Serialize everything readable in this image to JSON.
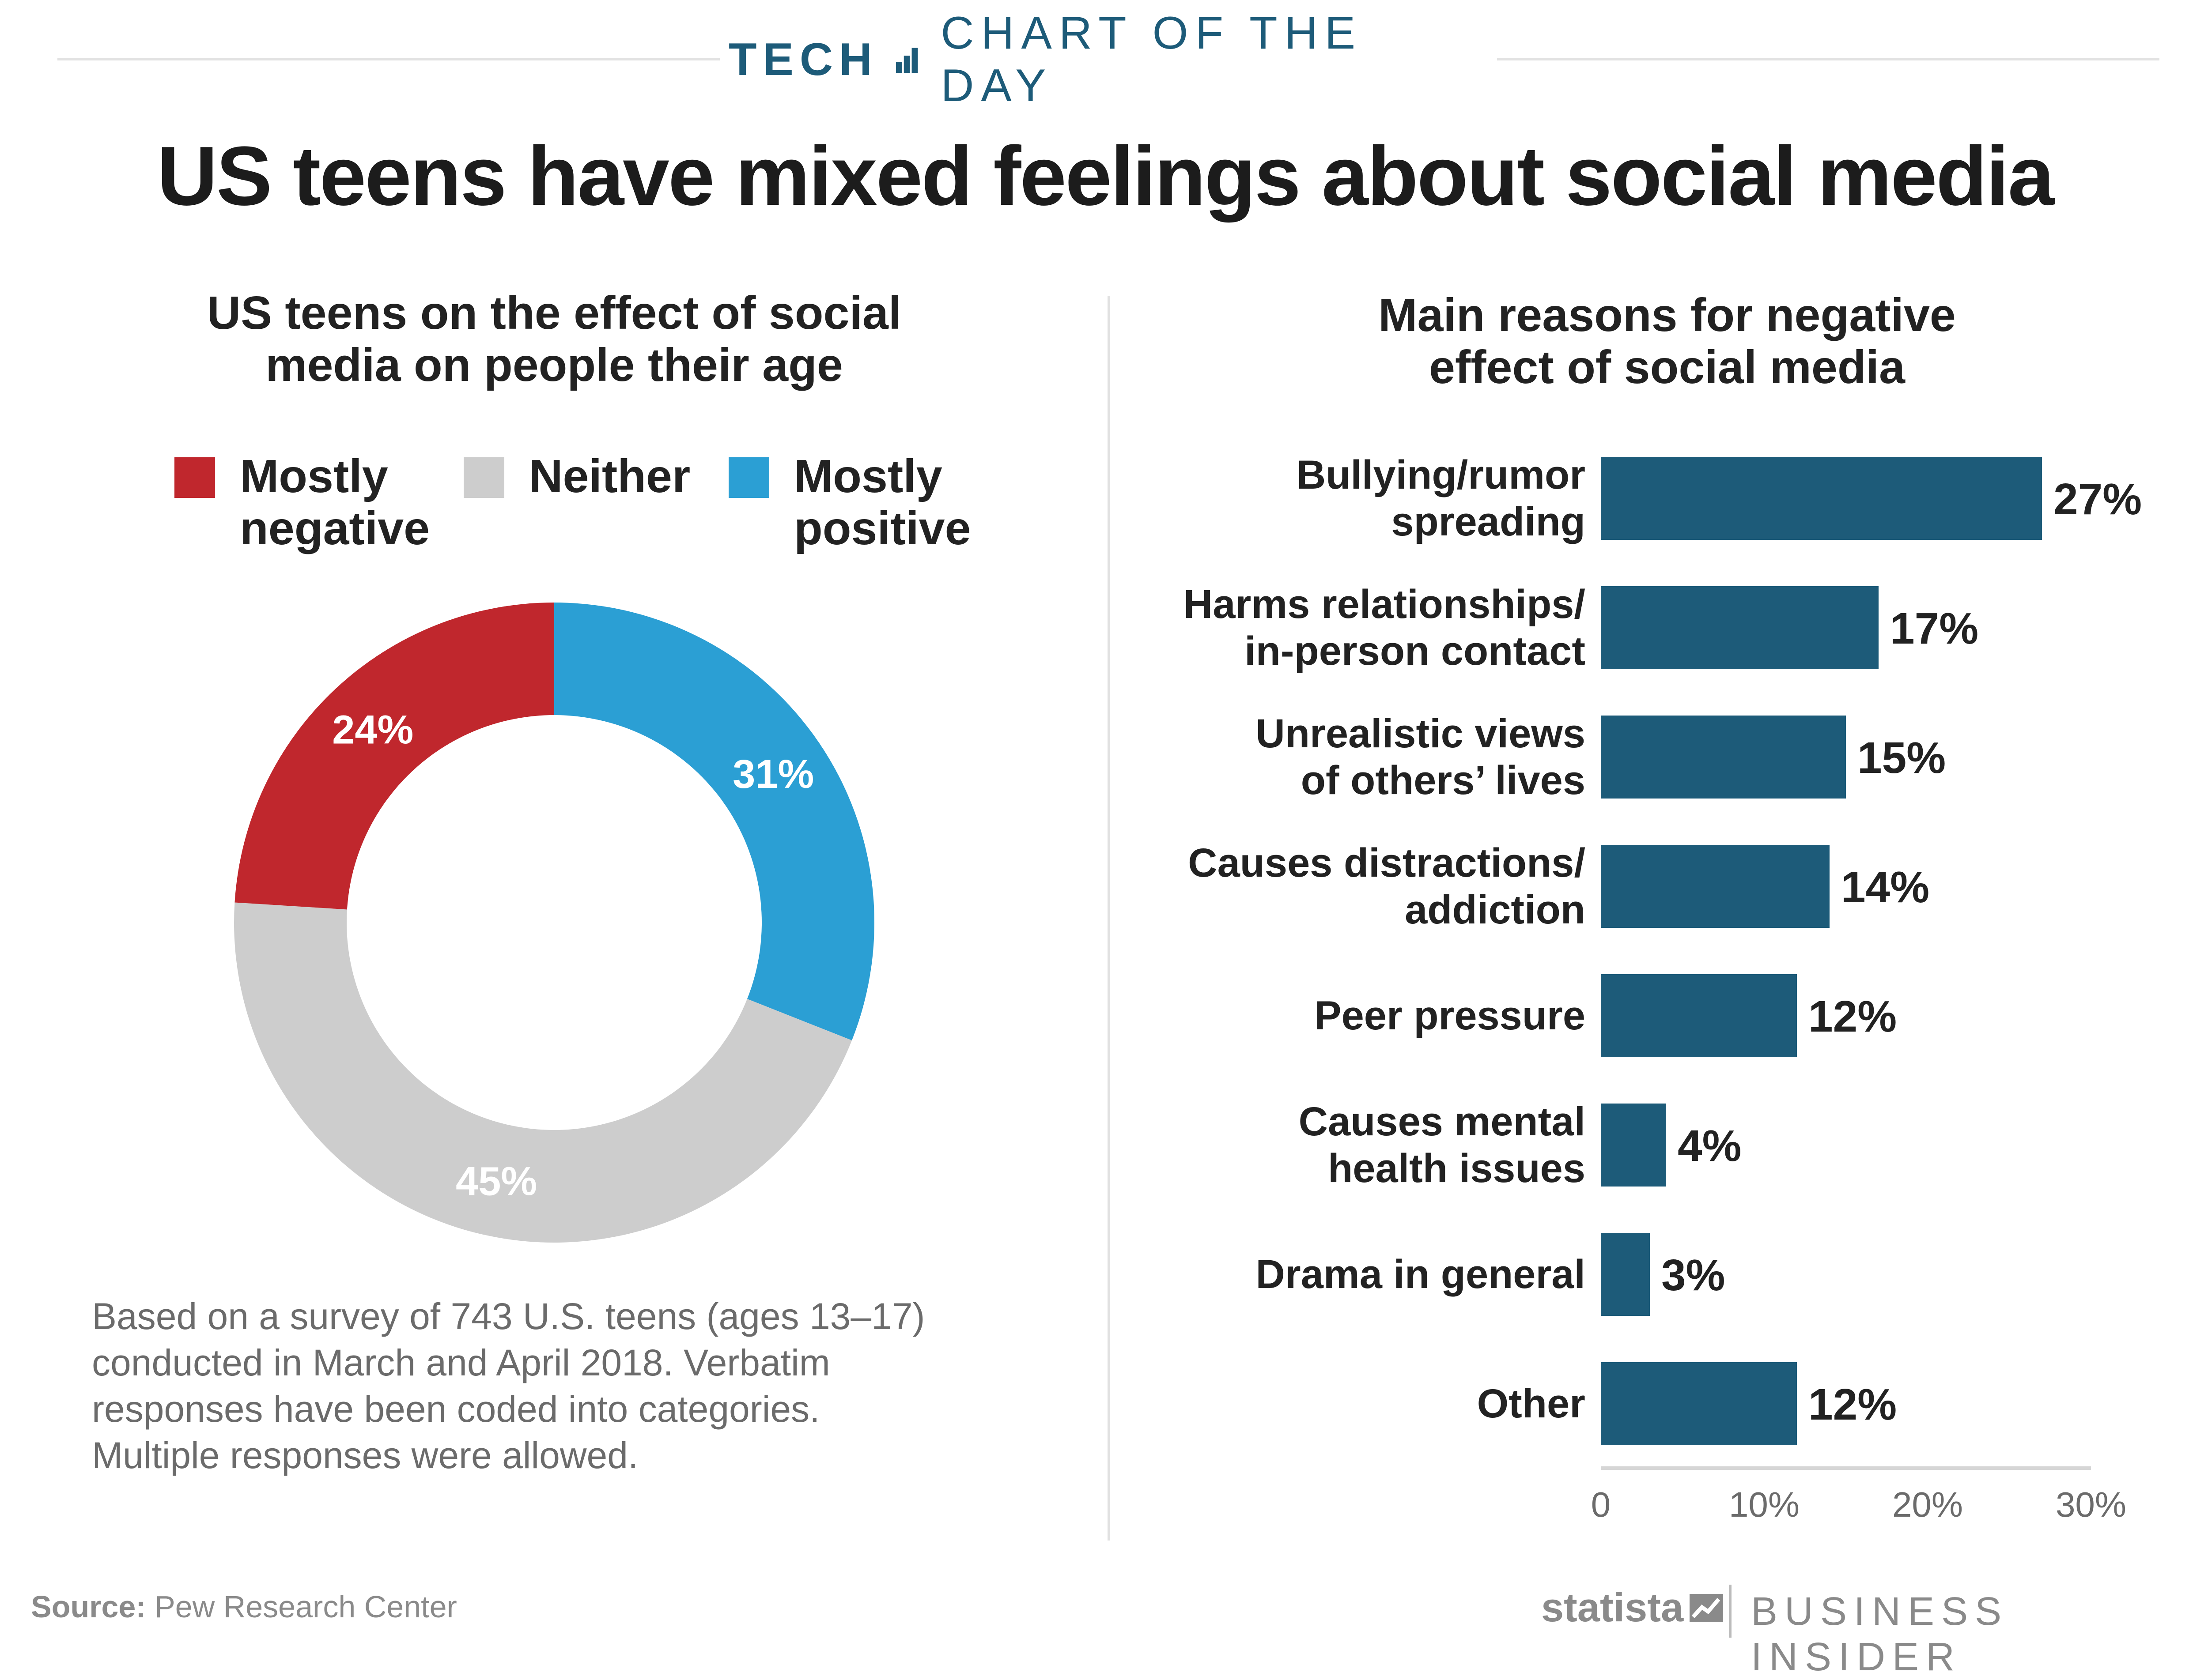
{
  "header": {
    "tech": "TECH",
    "chart_of_the_day": "CHART OF THE DAY",
    "title": "US teens have mixed feelings about social media"
  },
  "left_panel": {
    "subtitle_line1": "US teens on the effect of social",
    "subtitle_line2": "media on people their age",
    "legend": [
      {
        "line1": "Mostly",
        "line2": "negative",
        "color": "#c0272d"
      },
      {
        "line1": "Neither",
        "line2": "",
        "color": "#cdcdcd"
      },
      {
        "line1": "Mostly",
        "line2": "positive",
        "color": "#2b9fd4"
      }
    ],
    "note_lines": [
      "Based on a survey of 743 U.S. teens (ages 13–17)",
      "conducted in March and April 2018. Verbatim",
      "responses have been coded into categories.",
      "Multiple responses were allowed."
    ]
  },
  "right_panel": {
    "subtitle_line1": "Main reasons for negative",
    "subtitle_line2": "effect of social media"
  },
  "chart_data": [
    {
      "type": "pie",
      "subtype": "donut",
      "title": "US teens on the effect of social media on people their age",
      "slices": [
        {
          "label": "Mostly positive",
          "value": 31,
          "display": "31%",
          "color": "#2b9fd4"
        },
        {
          "label": "Neither",
          "value": 45,
          "display": "45%",
          "color": "#cdcdcd"
        },
        {
          "label": "Mostly negative",
          "value": 24,
          "display": "24%",
          "color": "#c0272d"
        }
      ]
    },
    {
      "type": "bar",
      "orientation": "horizontal",
      "title": "Main reasons for negative effect of social media",
      "categories": [
        [
          "Bullying/rumor",
          "spreading"
        ],
        [
          "Harms relationships/",
          "in-person contact"
        ],
        [
          "Unrealistic views",
          "of others’ lives"
        ],
        [
          "Causes distractions/",
          "addiction"
        ],
        [
          "Peer pressure"
        ],
        [
          "Causes mental",
          "health issues"
        ],
        [
          "Drama in general"
        ],
        [
          "Other"
        ]
      ],
      "values": [
        27,
        17,
        15,
        14,
        12,
        4,
        3,
        12
      ],
      "value_labels": [
        "27%",
        "17%",
        "15%",
        "14%",
        "12%",
        "4%",
        "3%",
        "12%"
      ],
      "xlim": [
        0,
        30
      ],
      "ticks": [
        0,
        10,
        20,
        30
      ],
      "tick_labels": [
        "0",
        "10%",
        "20%",
        "30%"
      ],
      "bar_color": "#1d5b79",
      "grid": false
    }
  ],
  "footer": {
    "source_label": "Source:",
    "source_text": "Pew Research Center",
    "statista": "statista",
    "business_insider": "BUSINESS INSIDER"
  }
}
